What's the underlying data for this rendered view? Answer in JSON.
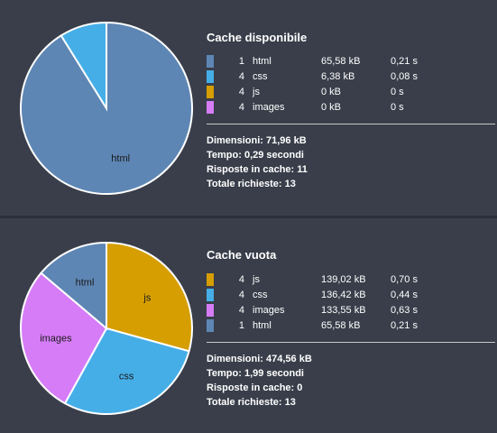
{
  "cached": {
    "title": "Cache disponibile",
    "legend": [
      {
        "count": "1",
        "name": "html",
        "size": "65,58 kB",
        "time": "0,21 s",
        "color": "#5e86b4"
      },
      {
        "count": "4",
        "name": "css",
        "size": "6,38 kB",
        "time": "0,08 s",
        "color": "#46aee7"
      },
      {
        "count": "4",
        "name": "js",
        "size": "0 kB",
        "time": "0 s",
        "color": "#d69e00"
      },
      {
        "count": "4",
        "name": "images",
        "size": "0 kB",
        "time": "0 s",
        "color": "#d67cf7"
      }
    ],
    "pie_labels": {
      "html": "html"
    },
    "stats": {
      "size": "Dimensioni: 71,96 kB",
      "time": "Tempo: 0,29 secondi",
      "cached": "Risposte in cache: 11",
      "total": "Totale richieste: 13"
    }
  },
  "empty": {
    "title": "Cache vuota",
    "legend": [
      {
        "count": "4",
        "name": "js",
        "size": "139,02 kB",
        "time": "0,70 s",
        "color": "#d69e00"
      },
      {
        "count": "4",
        "name": "css",
        "size": "136,42 kB",
        "time": "0,44 s",
        "color": "#46aee7"
      },
      {
        "count": "4",
        "name": "images",
        "size": "133,55 kB",
        "time": "0,63 s",
        "color": "#d67cf7"
      },
      {
        "count": "1",
        "name": "html",
        "size": "65,58 kB",
        "time": "0,21 s",
        "color": "#5e86b4"
      }
    ],
    "pie_labels": {
      "js": "js",
      "css": "css",
      "images": "images",
      "html": "html"
    },
    "stats": {
      "size": "Dimensioni: 474,56 kB",
      "time": "Tempo: 1,99 secondi",
      "cached": "Risposte in cache: 0",
      "total": "Totale richieste: 13"
    }
  },
  "chart_data": [
    {
      "type": "pie",
      "title": "Cache disponibile",
      "categories": [
        "html",
        "css",
        "js",
        "images"
      ],
      "values": [
        65.58,
        6.38,
        0,
        0
      ],
      "colors": [
        "#5e86b4",
        "#46aee7",
        "#d69e00",
        "#d67cf7"
      ]
    },
    {
      "type": "pie",
      "title": "Cache vuota",
      "categories": [
        "js",
        "css",
        "images",
        "html"
      ],
      "values": [
        139.02,
        136.42,
        133.55,
        65.58
      ],
      "colors": [
        "#d69e00",
        "#46aee7",
        "#d67cf7",
        "#5e86b4"
      ]
    }
  ]
}
